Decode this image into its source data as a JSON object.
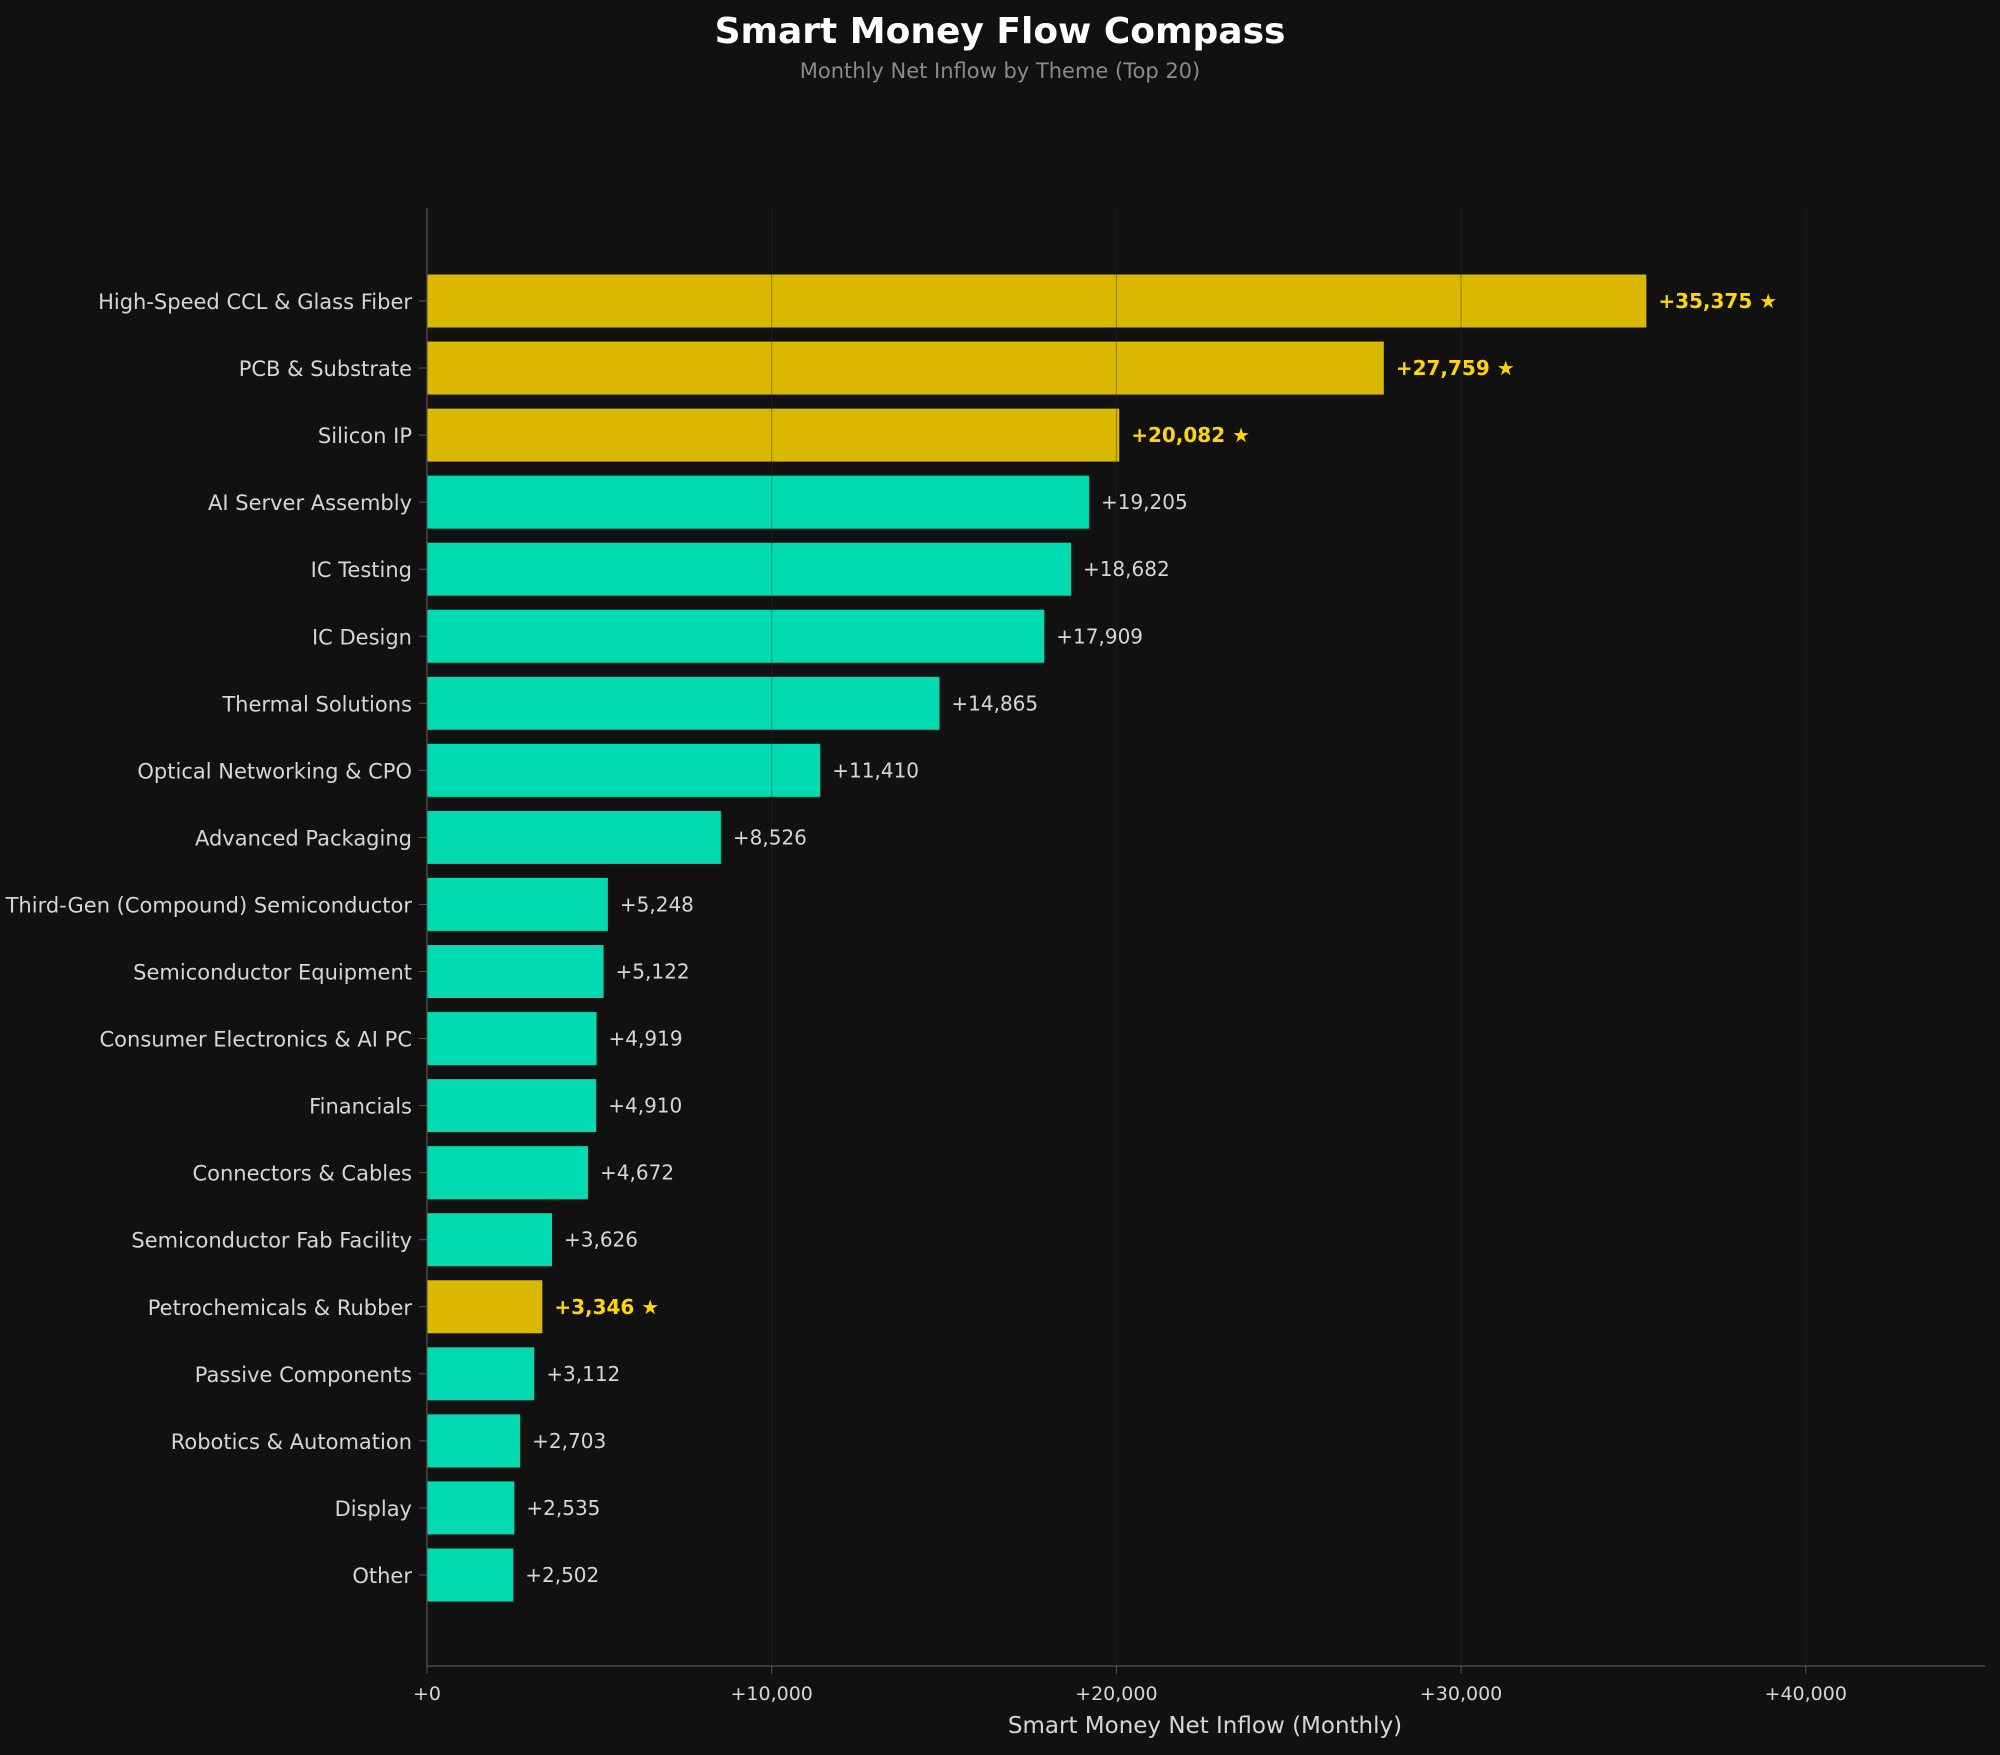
{
  "chart_data": {
    "type": "bar",
    "orientation": "horizontal",
    "title": "Smart Money Flow Compass",
    "subtitle": "Monthly Net Inflow by Theme (Top 20)",
    "xlabel": "Smart Money Net Inflow (Monthly)",
    "ylabel": "",
    "xlim": [
      0,
      45200
    ],
    "xticks": [
      0,
      10000,
      20000,
      30000,
      40000
    ],
    "xtick_labels": [
      "+0",
      "+10,000",
      "+20,000",
      "+30,000",
      "+40,000"
    ],
    "grid": "vertical",
    "categories": [
      "High-Speed CCL & Glass Fiber",
      "PCB & Substrate",
      "Silicon IP",
      "AI Server Assembly",
      "IC Testing",
      "IC Design",
      "Thermal Solutions",
      "Optical Networking & CPO",
      "Advanced Packaging",
      "Third-Gen (Compound) Semiconductor",
      "Semiconductor Equipment",
      "Consumer Electronics & AI PC",
      "Financials",
      "Connectors & Cables",
      "Semiconductor Fab Facility",
      "Petrochemicals & Rubber",
      "Passive Components",
      "Robotics & Automation",
      "Display",
      "Other"
    ],
    "values": [
      35375,
      27759,
      20082,
      19205,
      18682,
      17909,
      14865,
      11410,
      8526,
      5248,
      5122,
      4919,
      4910,
      4672,
      3626,
      3346,
      3112,
      2703,
      2535,
      2502
    ],
    "value_labels": [
      "+35,375 ★",
      "+27,759 ★",
      "+20,082 ★",
      "+19,205",
      "+18,682",
      "+17,909",
      "+14,865",
      "+11,410",
      "+8,526",
      "+5,248",
      "+5,122",
      "+4,919",
      "+4,910",
      "+4,672",
      "+3,626",
      "+3,346 ★",
      "+3,112",
      "+2,703",
      "+2,535",
      "+2,502"
    ],
    "highlighted": [
      true,
      true,
      true,
      false,
      false,
      false,
      false,
      false,
      false,
      false,
      false,
      false,
      false,
      false,
      false,
      true,
      false,
      false,
      false,
      false
    ],
    "colors": {
      "normal": "#02dbb1",
      "highlight": "#dab800",
      "highlight_label": "#ffd600",
      "normal_label": "#d6d6d6",
      "background": "#111111",
      "grid": "#2a2a2a",
      "axis": "#555555"
    }
  }
}
